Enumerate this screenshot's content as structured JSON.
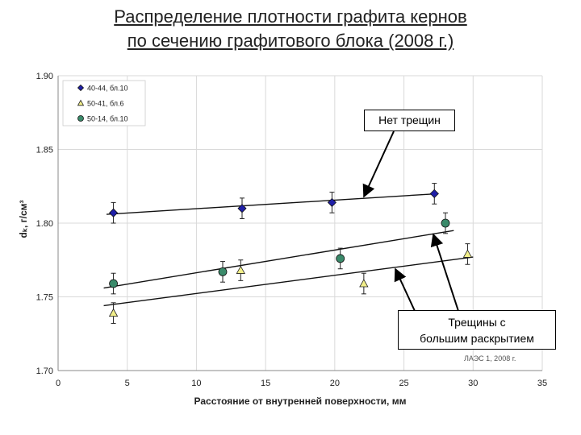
{
  "header": {
    "title_line1": "Распределение плотности графита кернов",
    "title_line2": "по сечению графитового блока (2008 г.)"
  },
  "chart_data": {
    "type": "scatter",
    "xlabel": "Расстояние от внутренней поверхности, мм",
    "ylabel": "dₖ, г/см³",
    "xlim": [
      0,
      35
    ],
    "ylim": [
      1.7,
      1.9
    ],
    "x_ticks": [
      "0",
      "5",
      "10",
      "15",
      "20",
      "25",
      "30",
      "35"
    ],
    "y_ticks": [
      "1.70",
      "1.75",
      "1.80",
      "1.85",
      "1.90"
    ],
    "grid": true,
    "legend_position": "top-left",
    "series": [
      {
        "name": "40-44, бл.10",
        "marker": "diamond",
        "color": "#1f1fa8",
        "x": [
          4,
          13.3,
          19.8,
          27.2
        ],
        "y": [
          1.807,
          1.81,
          1.814,
          1.82
        ],
        "err": [
          0.007,
          0.007,
          0.007,
          0.007
        ],
        "trend": [
          [
            3.5,
            1.806
          ],
          [
            27.5,
            1.82
          ]
        ]
      },
      {
        "name": "50-41, бл.6",
        "marker": "triangle",
        "color": "#f2ef8a",
        "x": [
          4,
          13.2,
          22.1,
          29.6
        ],
        "y": [
          1.739,
          1.768,
          1.759,
          1.779
        ],
        "err": [
          0.007,
          0.007,
          0.007,
          0.007
        ],
        "trend": [
          [
            3.3,
            1.744
          ],
          [
            30.0,
            1.777
          ]
        ]
      },
      {
        "name": "50-14, бл.10",
        "marker": "circle",
        "color": "#3a8a6a",
        "x": [
          4,
          11.9,
          20.4,
          28.0
        ],
        "y": [
          1.759,
          1.767,
          1.776,
          1.8
        ],
        "err": [
          0.007,
          0.007,
          0.007,
          0.007
        ],
        "trend": [
          [
            3.3,
            1.756
          ],
          [
            28.6,
            1.795
          ]
        ]
      }
    ],
    "annotations": {
      "no_cracks": "Нет трещин",
      "cracks_line1": "Трещины с",
      "cracks_line2": "большим раскрытием",
      "credit": "ЛАЭС 1, 2008 г."
    }
  }
}
